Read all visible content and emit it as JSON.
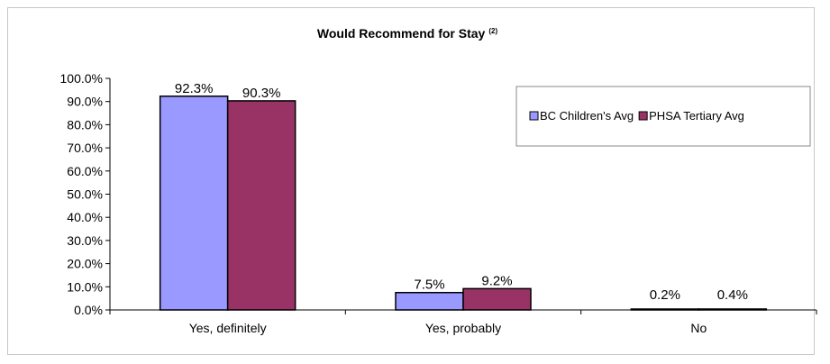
{
  "chart_data": {
    "type": "bar",
    "title": "Would Recommend for Stay",
    "title_superscript": "(2)",
    "xlabel": "",
    "ylabel": "",
    "categories": [
      "Yes, definitely",
      "Yes, probably",
      "No"
    ],
    "series": [
      {
        "name": "BC Children's Avg",
        "values": [
          92.3,
          7.5,
          0.2
        ],
        "labels": [
          "92.3%",
          "7.5%",
          "0.2%"
        ],
        "color": "#9999ff"
      },
      {
        "name": "PHSA Tertiary Avg",
        "values": [
          90.3,
          9.2,
          0.4
        ],
        "labels": [
          "90.3%",
          "9.2%",
          "0.4%"
        ],
        "color": "#993366"
      }
    ],
    "ylim": [
      0,
      100
    ],
    "y_ticks": [
      0,
      10,
      20,
      30,
      40,
      50,
      60,
      70,
      80,
      90,
      100
    ],
    "y_tick_labels": [
      "0.0%",
      "10.0%",
      "20.0%",
      "30.0%",
      "40.0%",
      "50.0%",
      "60.0%",
      "70.0%",
      "80.0%",
      "90.0%",
      "100.0%"
    ],
    "grid": false,
    "legend_position": "top-right",
    "bar_outline_color": "#000000"
  }
}
